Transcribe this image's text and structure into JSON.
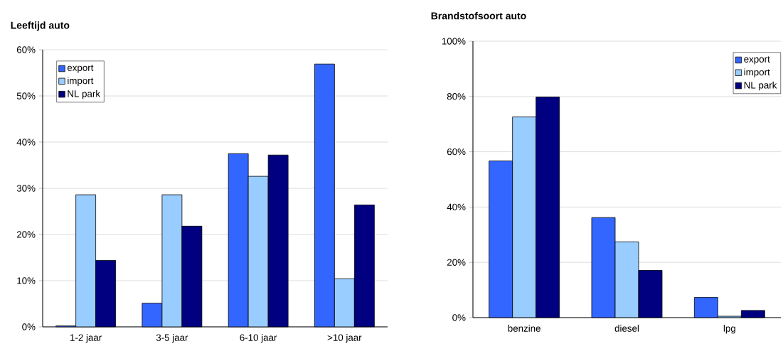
{
  "chart_data": [
    {
      "type": "bar",
      "title": "Leeftijd auto",
      "categories": [
        "1-2 jaar",
        "3-5 jaar",
        "6-10 jaar",
        ">10 jaar"
      ],
      "series": [
        {
          "name": "export",
          "color": "#3366ff",
          "values": [
            0.2,
            5.1,
            37.5,
            56.9
          ]
        },
        {
          "name": "import",
          "color": "#99ccff",
          "values": [
            28.6,
            28.6,
            32.6,
            10.4
          ]
        },
        {
          "name": "NL park",
          "color": "#000080",
          "values": [
            14.4,
            21.8,
            37.2,
            26.4
          ]
        }
      ],
      "ylim": [
        0,
        60
      ],
      "yticks": [
        {
          "value": 0,
          "label": "0%"
        },
        {
          "value": 10,
          "label": "10%"
        },
        {
          "value": 20,
          "label": "20%"
        },
        {
          "value": 30,
          "label": "30%"
        },
        {
          "value": 40,
          "label": "40%"
        },
        {
          "value": 50,
          "label": "50%"
        },
        {
          "value": 60,
          "label": "60%"
        }
      ],
      "grid": "y",
      "legend": "top left"
    },
    {
      "type": "bar",
      "title": "Brandstofsoort auto",
      "categories": [
        "benzine",
        "diesel",
        "lpg"
      ],
      "series": [
        {
          "name": "export",
          "color": "#3366ff",
          "values": [
            56.7,
            36.2,
            7.3
          ]
        },
        {
          "name": "import",
          "color": "#99ccff",
          "values": [
            72.6,
            27.4,
            0.5
          ]
        },
        {
          "name": "NL park",
          "color": "#000080",
          "values": [
            79.8,
            17.1,
            2.6
          ]
        }
      ],
      "ylim": [
        0,
        100
      ],
      "yticks": [
        {
          "value": 0,
          "label": "0%"
        },
        {
          "value": 20,
          "label": "20%"
        },
        {
          "value": 40,
          "label": "40%"
        },
        {
          "value": 60,
          "label": "60%"
        },
        {
          "value": 80,
          "label": "80%"
        },
        {
          "value": 100,
          "label": "100%"
        }
      ],
      "grid": "y",
      "legend": "top right"
    }
  ]
}
